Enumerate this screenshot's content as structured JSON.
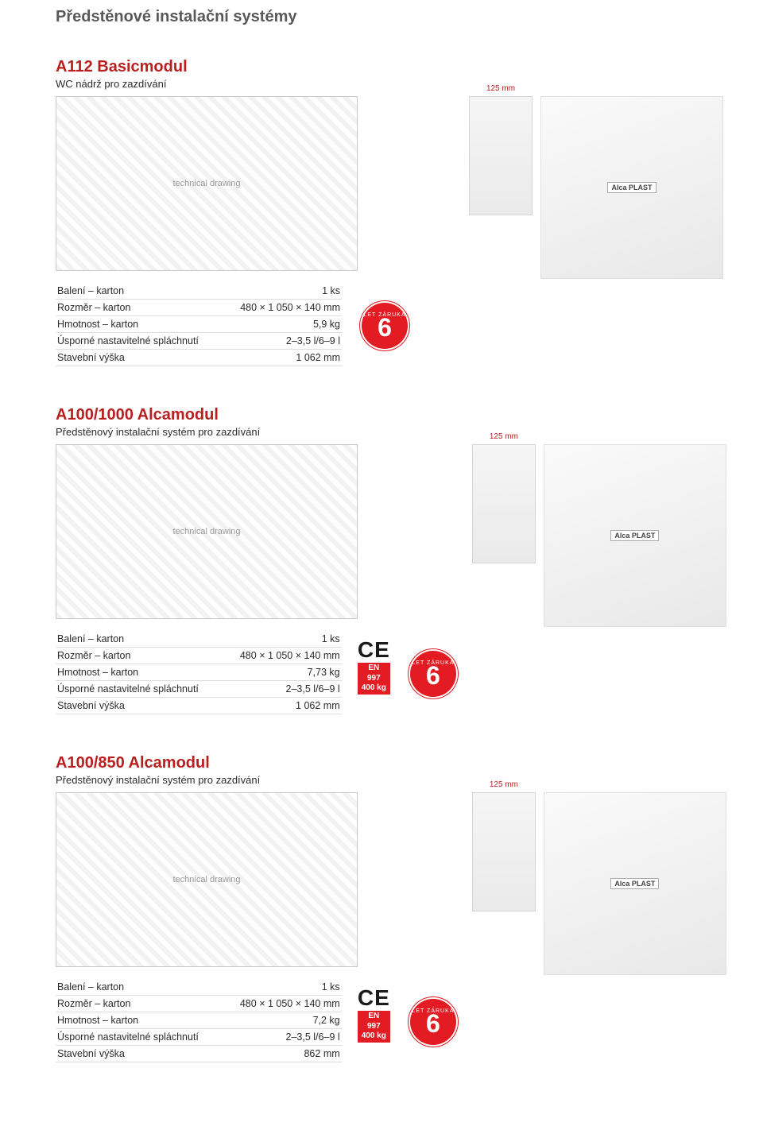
{
  "page_title": "Předstěnové instalační systémy",
  "diagram_label": "technical drawing",
  "photo_label": "Alca PLAST",
  "wall_caption": "125 mm",
  "warranty": {
    "arc_text": "LET ZÁRUKA",
    "years": "6"
  },
  "ce_text": "CE",
  "en_cert": {
    "line1": "EN 997",
    "line2": "400 kg"
  },
  "colors": {
    "heading": "#b91f1f",
    "badge_bg": "#e31b23",
    "page_title": "#595959",
    "row_border": "#dddddd"
  },
  "products": [
    {
      "title": "A112 Basicmodul",
      "subtitle": "WC nádrž pro zazdívání",
      "show_cert": false,
      "specs": [
        {
          "label": "Balení – karton",
          "value": "1 ks"
        },
        {
          "label": "Rozměr – karton",
          "value": "480 × 1 050 × 140 mm"
        },
        {
          "label": "Hmotnost – karton",
          "value": "5,9 kg"
        },
        {
          "label": "Úsporné nastavitelné spláchnutí",
          "value": "2–3,5 l/6–9 l"
        },
        {
          "label": "Stavební výška",
          "value": "1 062 mm"
        }
      ]
    },
    {
      "title": "A100/1000 Alcamodul",
      "subtitle": "Předstěnový instalační systém pro zazdívání",
      "show_cert": true,
      "specs": [
        {
          "label": "Balení – karton",
          "value": "1 ks"
        },
        {
          "label": "Rozměr – karton",
          "value": "480 × 1 050 × 140 mm"
        },
        {
          "label": "Hmotnost – karton",
          "value": "7,73 kg"
        },
        {
          "label": "Úsporné nastavitelné spláchnutí",
          "value": "2–3,5 l/6–9 l"
        },
        {
          "label": "Stavební výška",
          "value": "1 062 mm"
        }
      ]
    },
    {
      "title": "A100/850 Alcamodul",
      "subtitle": "Předstěnový instalační systém pro zazdívání",
      "show_cert": true,
      "specs": [
        {
          "label": "Balení – karton",
          "value": "1 ks"
        },
        {
          "label": "Rozměr – karton",
          "value": "480 × 1 050 × 140 mm"
        },
        {
          "label": "Hmotnost – karton",
          "value": "7,2 kg"
        },
        {
          "label": "Úsporné nastavitelné spláchnutí",
          "value": "2–3,5 l/6–9 l"
        },
        {
          "label": "Stavební výška",
          "value": "862 mm"
        }
      ]
    }
  ]
}
